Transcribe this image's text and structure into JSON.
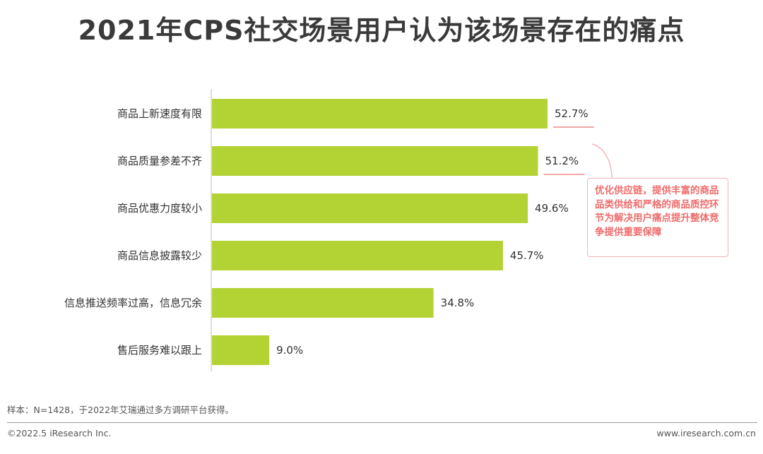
{
  "title": "2021年CPS社交场景用户认为该场景存在的痛点",
  "chart_data": {
    "type": "bar",
    "orientation": "horizontal",
    "categories": [
      "商品上新速度有限",
      "商品质量参差不齐",
      "商品优惠力度较小",
      "商品信息披露较少",
      "信息推送频率过高，信息冗余",
      "售后服务难以跟上"
    ],
    "values": [
      52.7,
      51.2,
      49.6,
      45.7,
      34.8,
      9.0
    ],
    "value_labels": [
      "52.7%",
      "51.2%",
      "49.6%",
      "45.7%",
      "34.8%",
      "9.0%"
    ],
    "xlim": [
      0,
      60
    ],
    "bar_color": "#b3d334",
    "highlight_color": "#f2a7a7",
    "highlighted_indices": [
      0,
      1
    ],
    "grid": false,
    "legend": "none"
  },
  "callout": {
    "text": "优化供应链，提供丰富的商品品类供给和严格的商品质控环节为解决用户痛点提升整体竞争提供重要保障"
  },
  "footer": {
    "sample_note": "样本：N=1428，于2022年艾瑞通过多方调研平台获得。",
    "copyright": "©2022.5 iResearch Inc.",
    "website": "www.iresearch.com.cn"
  }
}
